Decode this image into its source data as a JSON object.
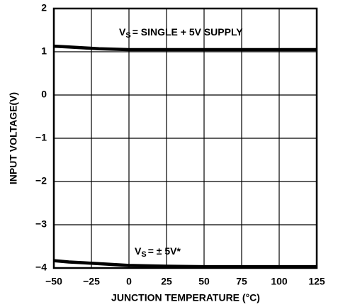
{
  "chart_data": {
    "type": "line",
    "x_label": "JUNCTION TEMPERATURE (°C)",
    "y_label": "INPUT VOLTAGE(V)",
    "x": [
      -50,
      -40,
      -30,
      -20,
      -10,
      0,
      25,
      50,
      75,
      100,
      125
    ],
    "series": [
      {
        "color": "#000000",
        "values": [
          1.13,
          1.11,
          1.09,
          1.07,
          1.06,
          1.05,
          1.05,
          1.05,
          1.05,
          1.05,
          1.05
        ]
      },
      {
        "color": "#000000",
        "values": [
          -3.83,
          -3.86,
          -3.88,
          -3.9,
          -3.92,
          -3.94,
          -3.96,
          -3.97,
          -3.97,
          -3.97,
          -3.97
        ]
      }
    ],
    "annotations": [
      {
        "parts": [
          "V",
          "S",
          "= SINGLE + 5V SUPPLY"
        ]
      },
      {
        "parts": [
          "V",
          "S",
          "= ± 5V*"
        ]
      }
    ],
    "xlim": [
      -50,
      125
    ],
    "xticks": [
      {
        "value": -50,
        "label": "−50"
      },
      {
        "value": -25,
        "label": "−25"
      },
      0,
      25,
      50,
      75,
      100,
      125
    ],
    "ylim": [
      -4,
      2
    ],
    "yticks": [
      {
        "value": -4,
        "label": "−4"
      },
      {
        "value": -3,
        "label": "−3"
      },
      {
        "value": -2,
        "label": "−2"
      },
      {
        "value": -1,
        "label": "−1"
      },
      0,
      1,
      2
    ],
    "grid": true
  }
}
